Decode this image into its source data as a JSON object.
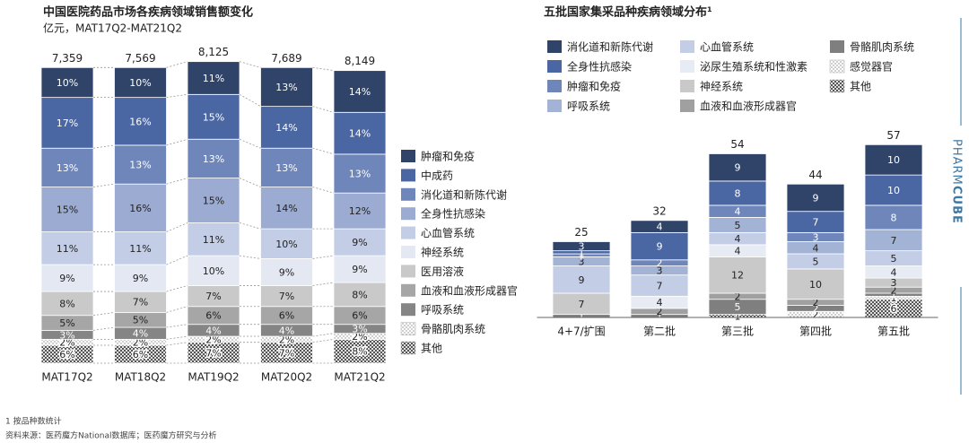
{
  "chart_data": [
    {
      "type": "stacked-bar",
      "title": "中国医院药品市场各疾病领域销售额变化",
      "subtitle": "亿元，MAT17Q2-MAT21Q2",
      "categories": [
        "MAT17Q2",
        "MAT18Q2",
        "MAT19Q2",
        "MAT20Q2",
        "MAT21Q2"
      ],
      "totals": {
        "values": [
          7359,
          7569,
          8125,
          7689,
          8149
        ],
        "value_labels": [
          "7,359",
          "7,569",
          "8,125",
          "7,689",
          "8,149"
        ]
      },
      "series": [
        {
          "name": "肿瘤和免疫",
          "color": "#2f4468",
          "values": [
            10,
            10,
            11,
            13,
            14
          ],
          "value_labels": [
            "10%",
            "10%",
            "11%",
            "13%",
            "14%"
          ]
        },
        {
          "name": "中成药",
          "color": "#4b67a3",
          "values": [
            17,
            16,
            15,
            14,
            14
          ],
          "value_labels": [
            "17%",
            "16%",
            "15%",
            "14%",
            "14%"
          ]
        },
        {
          "name": "消化道和新陈代谢",
          "color": "#6f86bb",
          "values": [
            13,
            13,
            13,
            13,
            13
          ],
          "value_labels": [
            "13%",
            "13%",
            "13%",
            "13%",
            "13%"
          ]
        },
        {
          "name": "全身性抗感染",
          "color": "#9cabd1",
          "values": [
            15,
            16,
            15,
            14,
            12
          ],
          "value_labels": [
            "15%",
            "16%",
            "15%",
            "14%",
            "12%"
          ]
        },
        {
          "name": "心血管系统",
          "color": "#c3cde6",
          "values": [
            11,
            11,
            11,
            10,
            9
          ],
          "value_labels": [
            "11%",
            "11%",
            "11%",
            "10%",
            "9%"
          ]
        },
        {
          "name": "神经系统",
          "color": "#e3e8f3",
          "values": [
            9,
            9,
            10,
            9,
            9
          ],
          "value_labels": [
            "9%",
            "9%",
            "10%",
            "9%",
            "9%"
          ]
        },
        {
          "name": "医用溶液",
          "color": "#c9c9c9",
          "values": [
            8,
            7,
            7,
            7,
            8
          ],
          "value_labels": [
            "8%",
            "7%",
            "7%",
            "7%",
            "8%"
          ]
        },
        {
          "name": "血液和血液形成器官",
          "color": "#a6a6a6",
          "values": [
            5,
            5,
            6,
            6,
            6
          ],
          "value_labels": [
            "5%",
            "5%",
            "6%",
            "6%",
            "6%"
          ]
        },
        {
          "name": "呼吸系统",
          "color": "#858585",
          "values": [
            3,
            4,
            4,
            4,
            3
          ],
          "value_labels": [
            "3%",
            "4%",
            "4%",
            "4%",
            "3%"
          ]
        },
        {
          "name": "骨骼肌肉系统",
          "color": "#ffffff",
          "pattern": "dots",
          "values": [
            2,
            2,
            2,
            2,
            2
          ],
          "value_labels": [
            "2%",
            "2%",
            "2%",
            "2%",
            "2%"
          ]
        },
        {
          "name": "其他",
          "color": "#555555",
          "pattern": "checker",
          "values": [
            6,
            6,
            7,
            7,
            8
          ],
          "value_labels": [
            "6%",
            "6%",
            "7%",
            "7%",
            "8%"
          ]
        }
      ]
    },
    {
      "type": "stacked-bar",
      "title": "五批国家集采品种疾病领域分布¹",
      "categories": [
        "4+7/扩围",
        "第二批",
        "第三批",
        "第四批",
        "第五批"
      ],
      "totals": {
        "values": [
          25,
          32,
          54,
          44,
          57
        ]
      },
      "series": [
        {
          "name": "消化道和新陈代谢",
          "color": "#2f4468",
          "values": [
            3,
            4,
            9,
            9,
            10
          ]
        },
        {
          "name": "全身性抗感染",
          "color": "#4b67a3",
          "values": [
            1,
            9,
            8,
            7,
            10
          ]
        },
        {
          "name": "肿瘤和免疫",
          "color": "#6f86bb",
          "values": [
            1,
            2,
            4,
            3,
            8
          ]
        },
        {
          "name": "呼吸系统",
          "color": "#a3b3d6",
          "values": [
            3,
            3,
            5,
            4,
            7
          ]
        },
        {
          "name": "心血管系统",
          "color": "#c3cde6",
          "values": [
            9,
            7,
            4,
            5,
            5
          ]
        },
        {
          "name": "泌尿生殖系统和性激素",
          "color": "#e6ebf4",
          "values": [
            null,
            4,
            4,
            null,
            4
          ]
        },
        {
          "name": "神经系统",
          "color": "#c9c9c9",
          "values": [
            7,
            null,
            12,
            10,
            3
          ]
        },
        {
          "name": "血液和血液形成器官",
          "color": "#a0a0a0",
          "values": [
            null,
            2,
            2,
            2,
            2
          ]
        },
        {
          "name": "骨骼肌肉系统",
          "color": "#7f7f7f",
          "values": [
            1,
            1,
            5,
            2,
            1
          ]
        },
        {
          "name": "感觉器官",
          "color": "#ffffff",
          "pattern": "dots",
          "values": [
            null,
            null,
            null,
            2,
            1
          ]
        },
        {
          "name": "其他",
          "color": "#555555",
          "pattern": "checker",
          "values": [
            null,
            null,
            1,
            null,
            6
          ]
        }
      ]
    }
  ],
  "footnotes": [
    "1 按品种数统计",
    "资料来源：医药魔方National数据库；医药魔方研究与分析"
  ],
  "brand": {
    "light": "PHARM",
    "bold": "CUBE"
  }
}
